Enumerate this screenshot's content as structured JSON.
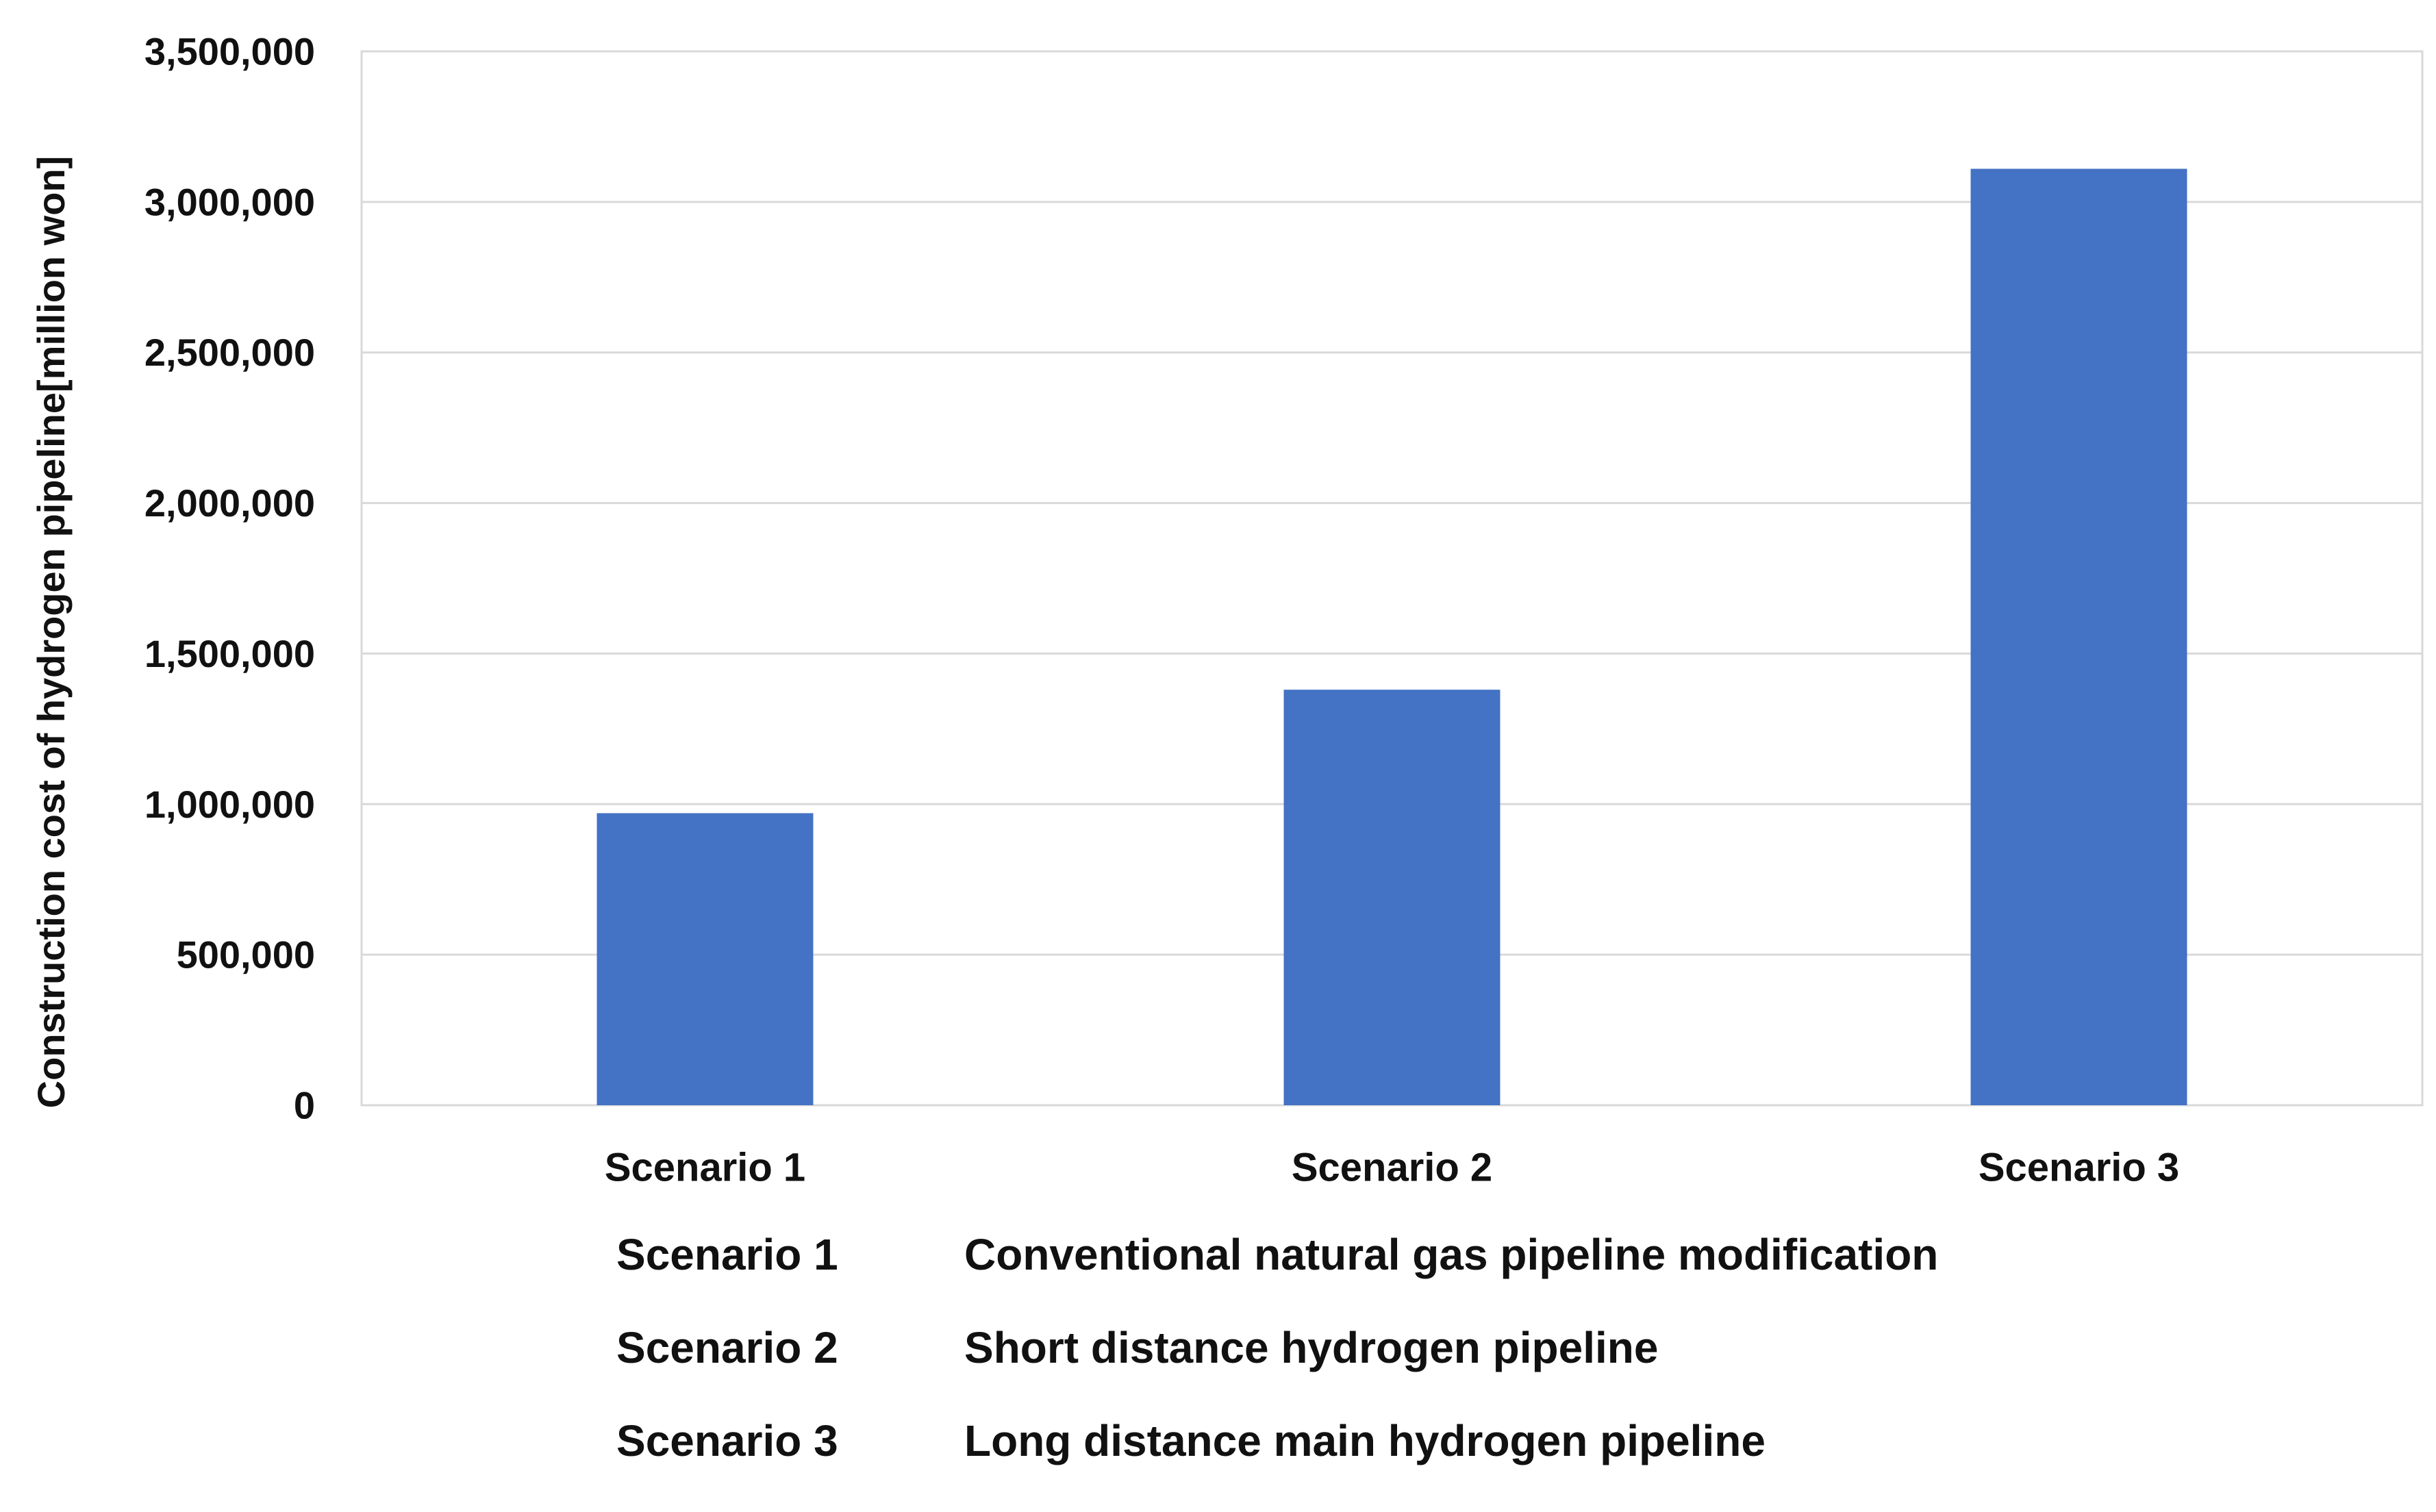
{
  "chart_data": {
    "type": "bar",
    "categories": [
      "Scenario 1",
      "Scenario 2",
      "Scenario 3"
    ],
    "values": [
      970000,
      1380000,
      3110000
    ],
    "title": "",
    "xlabel": "",
    "ylabel": "Construction cost of hydrogen pipeline[million won]",
    "ylim": [
      0,
      3500000
    ],
    "yticks": [
      0,
      500000,
      1000000,
      1500000,
      2000000,
      2500000,
      3000000,
      3500000
    ],
    "ytick_labels": [
      "0",
      "500,000",
      "1,000,000",
      "1,500,000",
      "2,000,000",
      "2,500,000",
      "3,000,000",
      "3,500,000"
    ],
    "grid": "horizontal",
    "legend": "none",
    "bar_color": "#4472C4"
  },
  "scenario_table": [
    {
      "key": "Scenario 1",
      "description": "Conventional natural gas pipeline modification"
    },
    {
      "key": "Scenario 2",
      "description": "Short distance hydrogen pipeline"
    },
    {
      "key": "Scenario 3",
      "description": "Long distance main hydrogen pipeline"
    }
  ]
}
